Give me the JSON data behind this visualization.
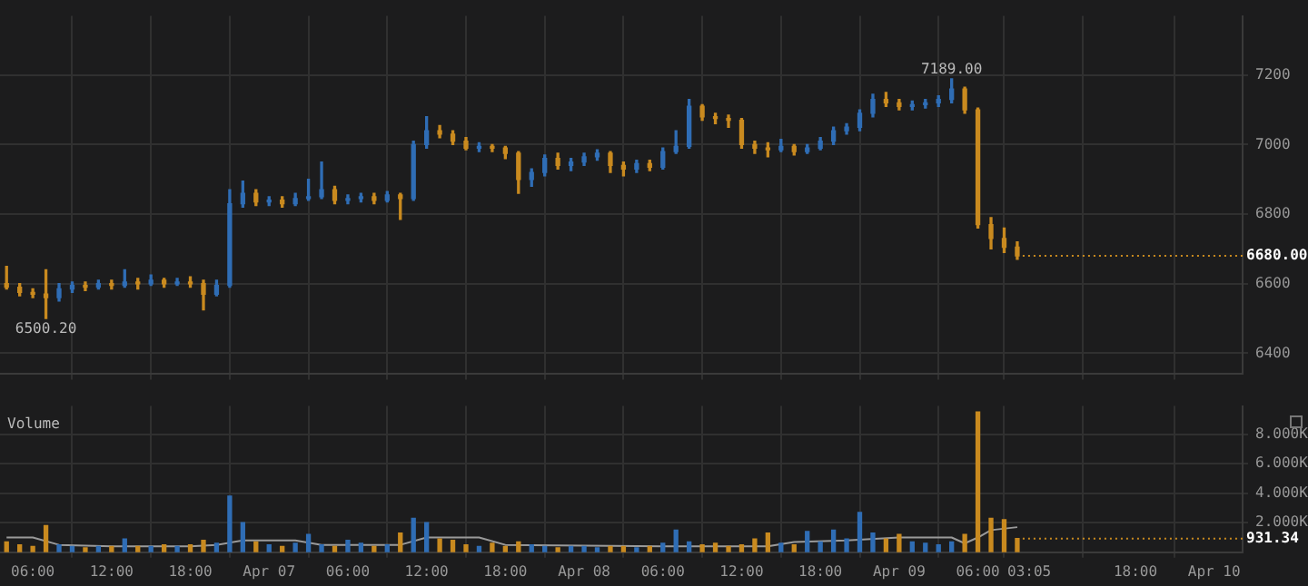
{
  "chart_data": [
    {
      "type": "candlestick",
      "grid": true,
      "tick_labels": "y",
      "xlim": [
        "--04-06T03:30",
        "--04-10T02:10"
      ],
      "xticks": [
        {
          "value": "--04-06T06:00",
          "label": "06:00"
        },
        {
          "value": "--04-06T12:00",
          "label": "12:00"
        },
        {
          "value": "--04-06T18:00",
          "label": "18:00"
        },
        {
          "value": "--04-07T00:00",
          "label": "Apr 07"
        },
        {
          "value": "--04-07T06:00",
          "label": "06:00"
        },
        {
          "value": "--04-07T12:00",
          "label": "12:00"
        },
        {
          "value": "--04-07T18:00",
          "label": "18:00"
        },
        {
          "value": "--04-08T00:00",
          "label": "Apr 08"
        },
        {
          "value": "--04-08T06:00",
          "label": "06:00"
        },
        {
          "value": "--04-08T12:00",
          "label": "12:00"
        },
        {
          "value": "--04-08T18:00",
          "label": "18:00"
        },
        {
          "value": "--04-09T00:00",
          "label": "Apr 09"
        },
        {
          "value": "--04-09T06:00",
          "label": "06:00"
        },
        {
          "value": "--04-09T09:55",
          "label": "03:05"
        },
        {
          "value": "--04-09T18:00",
          "label": "18:00"
        },
        {
          "value": "--04-10T00:00",
          "label": "Apr 10"
        }
      ],
      "ylim": [
        6340,
        7370
      ],
      "yticks": [
        6400,
        6600,
        6800,
        7000,
        7200
      ],
      "ref_lines": [
        {
          "axis": "y",
          "value": 6680,
          "label": "6680.00",
          "color": "#c98a1f",
          "line_style": "dotted"
        }
      ],
      "annotations": [
        {
          "text": "7189.00",
          "x": "--04-09T04:00",
          "y": 7189
        },
        {
          "text": "6500.20",
          "x": "--04-06T07:00",
          "y": 6500.2
        }
      ],
      "x": [
        "--04-06T04:00",
        "--04-06T05:00",
        "--04-06T06:00",
        "--04-06T07:00",
        "--04-06T08:00",
        "--04-06T09:00",
        "--04-06T10:00",
        "--04-06T11:00",
        "--04-06T12:00",
        "--04-06T13:00",
        "--04-06T14:00",
        "--04-06T15:00",
        "--04-06T16:00",
        "--04-06T17:00",
        "--04-06T18:00",
        "--04-06T19:00",
        "--04-06T20:00",
        "--04-06T21:00",
        "--04-06T22:00",
        "--04-06T23:00",
        "--04-07T00:00",
        "--04-07T01:00",
        "--04-07T02:00",
        "--04-07T03:00",
        "--04-07T04:00",
        "--04-07T05:00",
        "--04-07T06:00",
        "--04-07T07:00",
        "--04-07T08:00",
        "--04-07T09:00",
        "--04-07T10:00",
        "--04-07T11:00",
        "--04-07T12:00",
        "--04-07T13:00",
        "--04-07T14:00",
        "--04-07T15:00",
        "--04-07T16:00",
        "--04-07T17:00",
        "--04-07T18:00",
        "--04-07T19:00",
        "--04-07T20:00",
        "--04-07T21:00",
        "--04-07T22:00",
        "--04-07T23:00",
        "--04-08T00:00",
        "--04-08T01:00",
        "--04-08T02:00",
        "--04-08T03:00",
        "--04-08T04:00",
        "--04-08T05:00",
        "--04-08T06:00",
        "--04-08T07:00",
        "--04-08T08:00",
        "--04-08T09:00",
        "--04-08T10:00",
        "--04-08T11:00",
        "--04-08T12:00",
        "--04-08T13:00",
        "--04-08T14:00",
        "--04-08T15:00",
        "--04-08T16:00",
        "--04-08T17:00",
        "--04-08T18:00",
        "--04-08T19:00",
        "--04-08T20:00",
        "--04-08T21:00",
        "--04-08T22:00",
        "--04-08T23:00",
        "--04-09T00:00",
        "--04-09T01:00",
        "--04-09T02:00",
        "--04-09T03:00",
        "--04-09T04:00",
        "--04-09T05:00",
        "--04-09T06:00",
        "--04-09T07:00",
        "--04-09T08:00",
        "--04-09T09:00"
      ],
      "colors": [
        "#c98a1f",
        "#c98a1f",
        "#c98a1f",
        "#c98a1f",
        "#2f6db5",
        "#2f6db5",
        "#c98a1f",
        "#2f6db5",
        "#c98a1f",
        "#2f6db5",
        "#c98a1f",
        "#2f6db5",
        "#c98a1f",
        "#2f6db5",
        "#c98a1f",
        "#c98a1f",
        "#2f6db5",
        "#2f6db5",
        "#2f6db5",
        "#c98a1f",
        "#2f6db5",
        "#c98a1f",
        "#2f6db5",
        "#2f6db5",
        "#2f6db5",
        "#c98a1f",
        "#2f6db5",
        "#2f6db5",
        "#c98a1f",
        "#2f6db5",
        "#c98a1f",
        "#2f6db5",
        "#2f6db5",
        "#c98a1f",
        "#c98a1f",
        "#c98a1f",
        "#2f6db5",
        "#c98a1f",
        "#c98a1f",
        "#c98a1f",
        "#2f6db5",
        "#2f6db5",
        "#c98a1f",
        "#2f6db5",
        "#2f6db5",
        "#2f6db5",
        "#c98a1f",
        "#c98a1f",
        "#2f6db5",
        "#c98a1f",
        "#2f6db5",
        "#2f6db5",
        "#2f6db5",
        "#c98a1f",
        "#c98a1f",
        "#c98a1f",
        "#c98a1f",
        "#c98a1f",
        "#c98a1f",
        "#2f6db5",
        "#c98a1f",
        "#2f6db5",
        "#2f6db5",
        "#2f6db5",
        "#2f6db5",
        "#2f6db5",
        "#2f6db5",
        "#c98a1f",
        "#c98a1f",
        "#2f6db5",
        "#2f6db5",
        "#2f6db5",
        "#2f6db5",
        "#c98a1f",
        "#c98a1f",
        "#c98a1f",
        "#c98a1f",
        "#c98a1f"
      ],
      "ohlc": [
        [
          6600,
          6650,
          6585,
          6590
        ],
        [
          6590,
          6600,
          6565,
          6575
        ],
        [
          6575,
          6585,
          6560,
          6570
        ],
        [
          6570,
          6640,
          6500.2,
          6560
        ],
        [
          6560,
          6600,
          6550,
          6585
        ],
        [
          6585,
          6605,
          6575,
          6595
        ],
        [
          6595,
          6605,
          6580,
          6590
        ],
        [
          6590,
          6610,
          6585,
          6600
        ],
        [
          6600,
          6610,
          6585,
          6595
        ],
        [
          6595,
          6640,
          6590,
          6605
        ],
        [
          6605,
          6615,
          6585,
          6600
        ],
        [
          6600,
          6625,
          6595,
          6610
        ],
        [
          6610,
          6615,
          6590,
          6600
        ],
        [
          6600,
          6615,
          6595,
          6605
        ],
        [
          6605,
          6620,
          6590,
          6600
        ],
        [
          6600,
          6610,
          6525,
          6570
        ],
        [
          6570,
          6610,
          6565,
          6595
        ],
        [
          6595,
          6870,
          6590,
          6830
        ],
        [
          6830,
          6895,
          6820,
          6860
        ],
        [
          6860,
          6870,
          6825,
          6835
        ],
        [
          6835,
          6850,
          6825,
          6840
        ],
        [
          6840,
          6850,
          6820,
          6830
        ],
        [
          6830,
          6860,
          6825,
          6845
        ],
        [
          6845,
          6900,
          6840,
          6850
        ],
        [
          6850,
          6950,
          6845,
          6870
        ],
        [
          6870,
          6880,
          6830,
          6840
        ],
        [
          6840,
          6855,
          6830,
          6845
        ],
        [
          6845,
          6860,
          6835,
          6850
        ],
        [
          6850,
          6860,
          6830,
          6840
        ],
        [
          6840,
          6865,
          6835,
          6855
        ],
        [
          6855,
          6860,
          6785,
          6845
        ],
        [
          6845,
          7010,
          6840,
          7000
        ],
        [
          7000,
          7080,
          6990,
          7040
        ],
        [
          7040,
          7055,
          7020,
          7030
        ],
        [
          7030,
          7040,
          7000,
          7010
        ],
        [
          7010,
          7020,
          6985,
          6990
        ],
        [
          6990,
          7005,
          6980,
          6995
        ],
        [
          6995,
          7000,
          6980,
          6990
        ],
        [
          6990,
          6995,
          6960,
          6975
        ],
        [
          6975,
          6980,
          6860,
          6900
        ],
        [
          6900,
          6930,
          6880,
          6920
        ],
        [
          6920,
          6970,
          6910,
          6960
        ],
        [
          6960,
          6975,
          6930,
          6940
        ],
        [
          6940,
          6960,
          6925,
          6950
        ],
        [
          6950,
          6975,
          6940,
          6965
        ],
        [
          6965,
          6985,
          6955,
          6975
        ],
        [
          6975,
          6980,
          6920,
          6940
        ],
        [
          6940,
          6950,
          6910,
          6930
        ],
        [
          6930,
          6955,
          6920,
          6945
        ],
        [
          6945,
          6955,
          6925,
          6935
        ],
        [
          6935,
          6990,
          6930,
          6980
        ],
        [
          6980,
          7040,
          6975,
          6995
        ],
        [
          6995,
          7130,
          6990,
          7110
        ],
        [
          7110,
          7115,
          7070,
          7080
        ],
        [
          7080,
          7090,
          7060,
          7075
        ],
        [
          7075,
          7085,
          7050,
          7070
        ],
        [
          7070,
          7075,
          6990,
          7000
        ],
        [
          7000,
          7010,
          6975,
          6990
        ],
        [
          6990,
          7005,
          6965,
          6985
        ],
        [
          6985,
          7015,
          6980,
          6995
        ],
        [
          6995,
          7000,
          6970,
          6980
        ],
        [
          6980,
          7000,
          6975,
          6990
        ],
        [
          6990,
          7020,
          6985,
          7010
        ],
        [
          7010,
          7050,
          7000,
          7040
        ],
        [
          7040,
          7060,
          7030,
          7050
        ],
        [
          7050,
          7100,
          7040,
          7090
        ],
        [
          7090,
          7145,
          7080,
          7130
        ],
        [
          7130,
          7150,
          7110,
          7120
        ],
        [
          7120,
          7130,
          7100,
          7110
        ],
        [
          7110,
          7125,
          7100,
          7115
        ],
        [
          7115,
          7130,
          7105,
          7120
        ],
        [
          7120,
          7140,
          7110,
          7130
        ],
        [
          7130,
          7189,
          7120,
          7160
        ],
        [
          7160,
          7165,
          7090,
          7100
        ],
        [
          7100,
          7105,
          6760,
          6770
        ],
        [
          6770,
          6790,
          6700,
          6730
        ],
        [
          6730,
          6760,
          6690,
          6705
        ],
        [
          6705,
          6720,
          6670,
          6680
        ]
      ]
    },
    {
      "type": "bar",
      "grid": true,
      "annotations": [
        "Volume"
      ],
      "xlim": [
        "--04-06T03:30",
        "--04-10T02:10"
      ],
      "xticks": [
        {
          "value": "--04-06T06:00",
          "label": "06:00"
        },
        {
          "value": "--04-06T12:00",
          "label": "12:00"
        },
        {
          "value": "--04-06T18:00",
          "label": "18:00"
        },
        {
          "value": "--04-07T00:00",
          "label": "Apr 07"
        },
        {
          "value": "--04-07T06:00",
          "label": "06:00"
        },
        {
          "value": "--04-07T12:00",
          "label": "12:00"
        },
        {
          "value": "--04-07T18:00",
          "label": "18:00"
        },
        {
          "value": "--04-08T00:00",
          "label": "Apr 08"
        },
        {
          "value": "--04-08T06:00",
          "label": "06:00"
        },
        {
          "value": "--04-08T12:00",
          "label": "12:00"
        },
        {
          "value": "--04-08T18:00",
          "label": "18:00"
        },
        {
          "value": "--04-09T00:00",
          "label": "Apr 09"
        },
        {
          "value": "--04-09T06:00",
          "label": "06:00"
        },
        {
          "value": "--04-09T09:55",
          "label": "03:05"
        },
        {
          "value": "--04-09T18:00",
          "label": "18:00"
        },
        {
          "value": "--04-10T00:00",
          "label": "Apr 10"
        }
      ],
      "ylim": [
        0,
        9900
      ],
      "yticks": [
        {
          "value": 2000,
          "label": "2.000K"
        },
        {
          "value": 4000,
          "label": "4.000K"
        },
        {
          "value": 6000,
          "label": "6.000K"
        },
        {
          "value": 8000,
          "label": "8.000K"
        }
      ],
      "ref_lines": [
        {
          "axis": "y",
          "value": 931.34,
          "label": "931.34",
          "color": "#c98a1f",
          "line_style": "dotted"
        }
      ],
      "series": [
        {
          "type": "bar",
          "x": [
            "--04-06T04:00",
            "--04-06T05:00",
            "--04-06T06:00",
            "--04-06T07:00",
            "--04-06T08:00",
            "--04-06T09:00",
            "--04-06T10:00",
            "--04-06T11:00",
            "--04-06T12:00",
            "--04-06T13:00",
            "--04-06T14:00",
            "--04-06T15:00",
            "--04-06T16:00",
            "--04-06T17:00",
            "--04-06T18:00",
            "--04-06T19:00",
            "--04-06T20:00",
            "--04-06T21:00",
            "--04-06T22:00",
            "--04-06T23:00",
            "--04-07T00:00",
            "--04-07T01:00",
            "--04-07T02:00",
            "--04-07T03:00",
            "--04-07T04:00",
            "--04-07T05:00",
            "--04-07T06:00",
            "--04-07T07:00",
            "--04-07T08:00",
            "--04-07T09:00",
            "--04-07T10:00",
            "--04-07T11:00",
            "--04-07T12:00",
            "--04-07T13:00",
            "--04-07T14:00",
            "--04-07T15:00",
            "--04-07T16:00",
            "--04-07T17:00",
            "--04-07T18:00",
            "--04-07T19:00",
            "--04-07T20:00",
            "--04-07T21:00",
            "--04-07T22:00",
            "--04-07T23:00",
            "--04-08T00:00",
            "--04-08T01:00",
            "--04-08T02:00",
            "--04-08T03:00",
            "--04-08T04:00",
            "--04-08T05:00",
            "--04-08T06:00",
            "--04-08T07:00",
            "--04-08T08:00",
            "--04-08T09:00",
            "--04-08T10:00",
            "--04-08T11:00",
            "--04-08T12:00",
            "--04-08T13:00",
            "--04-08T14:00",
            "--04-08T15:00",
            "--04-08T16:00",
            "--04-08T17:00",
            "--04-08T18:00",
            "--04-08T19:00",
            "--04-08T20:00",
            "--04-08T21:00",
            "--04-08T22:00",
            "--04-08T23:00",
            "--04-09T00:00",
            "--04-09T01:00",
            "--04-09T02:00",
            "--04-09T03:00",
            "--04-09T04:00",
            "--04-09T05:00",
            "--04-09T06:00",
            "--04-09T07:00",
            "--04-09T08:00",
            "--04-09T09:00"
          ],
          "colors": [
            "#c98a1f",
            "#c98a1f",
            "#c98a1f",
            "#c98a1f",
            "#2f6db5",
            "#2f6db5",
            "#c98a1f",
            "#2f6db5",
            "#c98a1f",
            "#2f6db5",
            "#c98a1f",
            "#2f6db5",
            "#c98a1f",
            "#2f6db5",
            "#c98a1f",
            "#c98a1f",
            "#2f6db5",
            "#2f6db5",
            "#2f6db5",
            "#c98a1f",
            "#2f6db5",
            "#c98a1f",
            "#2f6db5",
            "#2f6db5",
            "#2f6db5",
            "#c98a1f",
            "#2f6db5",
            "#2f6db5",
            "#c98a1f",
            "#2f6db5",
            "#c98a1f",
            "#2f6db5",
            "#2f6db5",
            "#c98a1f",
            "#c98a1f",
            "#c98a1f",
            "#2f6db5",
            "#c98a1f",
            "#c98a1f",
            "#c98a1f",
            "#2f6db5",
            "#2f6db5",
            "#c98a1f",
            "#2f6db5",
            "#2f6db5",
            "#2f6db5",
            "#c98a1f",
            "#c98a1f",
            "#2f6db5",
            "#c98a1f",
            "#2f6db5",
            "#2f6db5",
            "#2f6db5",
            "#c98a1f",
            "#c98a1f",
            "#c98a1f",
            "#c98a1f",
            "#c98a1f",
            "#c98a1f",
            "#2f6db5",
            "#c98a1f",
            "#2f6db5",
            "#2f6db5",
            "#2f6db5",
            "#2f6db5",
            "#2f6db5",
            "#2f6db5",
            "#c98a1f",
            "#c98a1f",
            "#2f6db5",
            "#2f6db5",
            "#2f6db5",
            "#2f6db5",
            "#c98a1f",
            "#c98a1f",
            "#c98a1f",
            "#c98a1f",
            "#c98a1f"
          ],
          "values": [
            700,
            500,
            400,
            1800,
            500,
            400,
            300,
            400,
            400,
            900,
            400,
            400,
            500,
            400,
            500,
            800,
            600,
            3800,
            2000,
            700,
            500,
            400,
            600,
            1200,
            500,
            400,
            800,
            600,
            400,
            500,
            1300,
            2300,
            2000,
            900,
            800,
            500,
            400,
            600,
            400,
            700,
            500,
            400,
            300,
            400,
            400,
            300,
            400,
            400,
            300,
            400,
            600,
            1500,
            700,
            500,
            600,
            400,
            500,
            900,
            1300,
            600,
            500,
            1400,
            700,
            1500,
            900,
            2700,
            1300,
            900,
            1200,
            700,
            600,
            500,
            700,
            1200,
            9500,
            2300,
            2200,
            931.34
          ]
        },
        {
          "type": "line",
          "color": "#9a9a9a",
          "x": [
            "--04-06T04:00",
            "--04-06T06:00",
            "--04-06T08:00",
            "--04-06T12:00",
            "--04-06T18:00",
            "--04-06T20:00",
            "--04-06T22:00",
            "--04-07T02:00",
            "--04-07T04:00",
            "--04-07T10:00",
            "--04-07T12:00",
            "--04-07T16:00",
            "--04-07T18:00",
            "--04-08T06:00",
            "--04-08T14:00",
            "--04-08T16:00",
            "--04-08T20:00",
            "--04-09T00:00",
            "--04-09T04:00",
            "--04-09T05:00",
            "--04-09T06:00",
            "--04-09T07:00",
            "--04-09T09:00"
          ],
          "values": [
            1000,
            1000,
            500,
            400,
            400,
            500,
            800,
            800,
            500,
            500,
            1000,
            1000,
            500,
            400,
            400,
            700,
            800,
            1000,
            1000,
            600,
            1000,
            1500,
            1700
          ]
        }
      ]
    }
  ]
}
